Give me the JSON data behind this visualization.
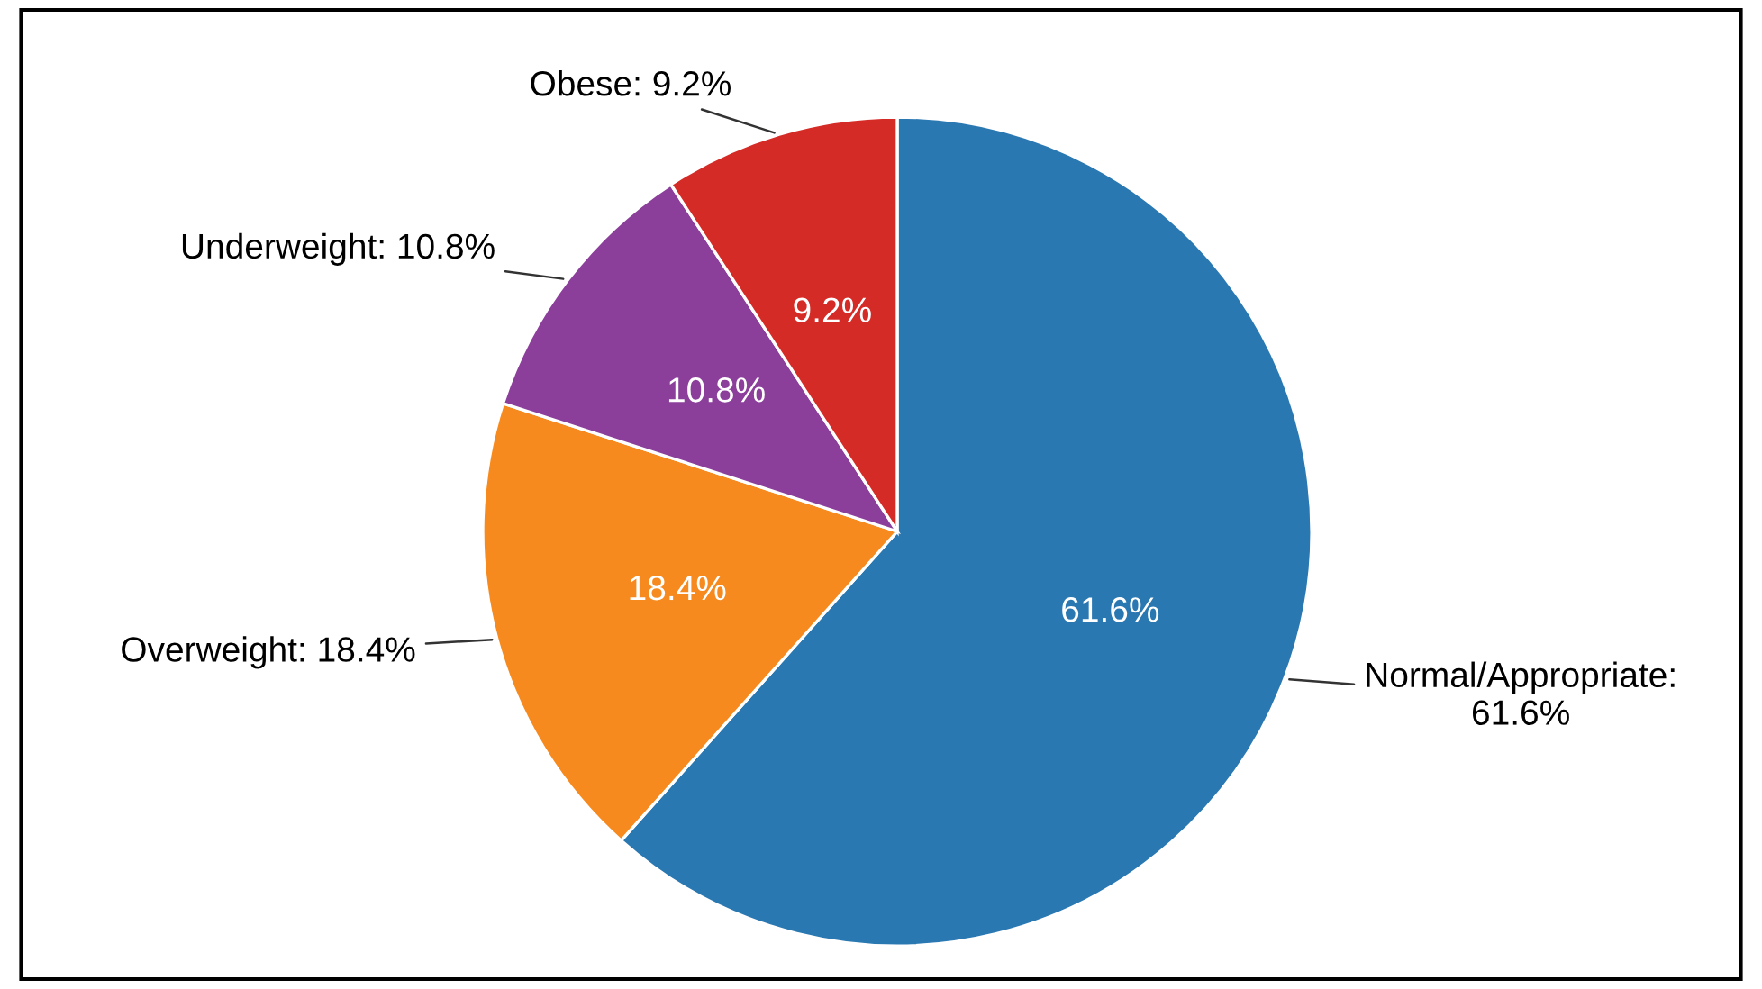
{
  "chart_data": {
    "type": "pie",
    "categories": [
      "Normal/Appropriate",
      "Overweight",
      "Underweight",
      "Obese"
    ],
    "values": [
      61.6,
      18.4,
      10.8,
      9.2
    ],
    "colors": [
      "#2a78b2",
      "#f68a1e",
      "#8b3f9b",
      "#d52b27"
    ],
    "value_labels": [
      "61.6%",
      "18.4%",
      "10.8%",
      "9.2%"
    ]
  }
}
